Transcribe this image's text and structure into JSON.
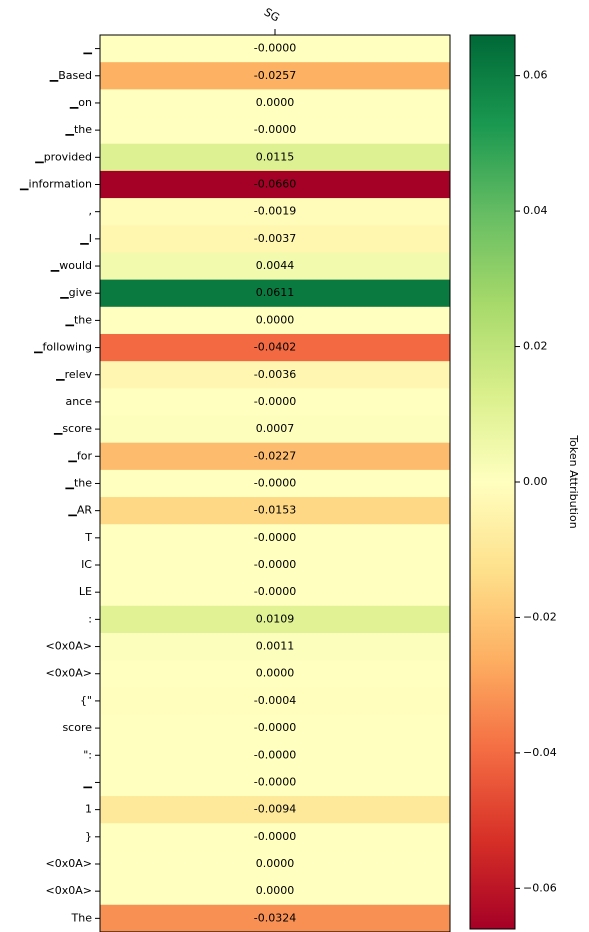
{
  "chart_data": {
    "type": "heatmap",
    "column_label": "SG",
    "colorbar_label": "Token Attribution",
    "colorbar_range": [
      -0.066,
      0.066
    ],
    "colorbar_ticks": [
      0.06,
      0.04,
      0.02,
      0.0,
      -0.02,
      -0.04,
      -0.06
    ],
    "colorbar_tick_labels": [
      "0.06",
      "0.04",
      "0.02",
      "0.00",
      "−0.02",
      "−0.04",
      "−0.06"
    ],
    "colormap": "RdYlGn",
    "tokens": [
      "▁",
      "▁Based",
      "▁on",
      "▁the",
      "▁provided",
      "▁information",
      ",",
      "▁I",
      "▁would",
      "▁give",
      "▁the",
      "▁following",
      "▁relev",
      "ance",
      "▁score",
      "▁for",
      "▁the",
      "▁AR",
      "T",
      "IC",
      "LE",
      ":",
      "<0x0A>",
      "<0x0A>",
      "{\"",
      "score",
      "\":",
      "▁",
      "1",
      "}",
      "<0x0A>",
      "<0x0A>",
      "The"
    ],
    "values": [
      -0.0,
      -0.0257,
      0.0,
      -0.0,
      0.0115,
      -0.066,
      -0.0019,
      -0.0037,
      0.0044,
      0.0611,
      0.0,
      -0.0402,
      -0.0036,
      -0.0,
      0.0007,
      -0.0227,
      -0.0,
      -0.0153,
      -0.0,
      -0.0,
      -0.0,
      0.0109,
      0.0011,
      0.0,
      -0.0004,
      -0.0,
      -0.0,
      -0.0,
      -0.0094,
      -0.0,
      0.0,
      0.0,
      -0.0324
    ],
    "value_labels": [
      "-0.0000",
      "-0.0257",
      "0.0000",
      "-0.0000",
      "0.0115",
      "-0.0660",
      "-0.0019",
      "-0.0037",
      "0.0044",
      "0.0611",
      "0.0000",
      "-0.0402",
      "-0.0036",
      "-0.0000",
      "0.0007",
      "-0.0227",
      "-0.0000",
      "-0.0153",
      "-0.0000",
      "-0.0000",
      "-0.0000",
      "0.0109",
      "0.0011",
      "0.0000",
      "-0.0004",
      "-0.0000",
      "-0.0000",
      "-0.0000",
      "-0.0094",
      "-0.0000",
      "0.0000",
      "0.0000",
      "-0.0324"
    ]
  }
}
